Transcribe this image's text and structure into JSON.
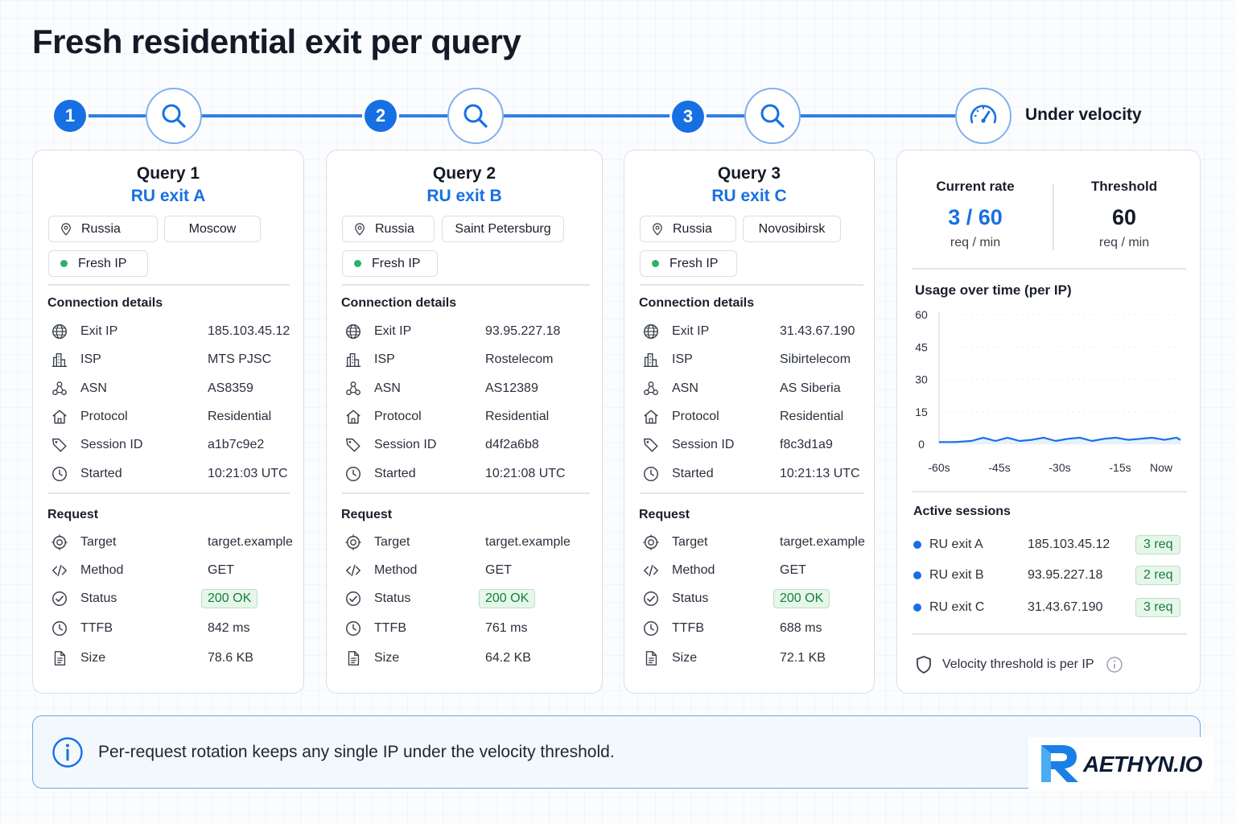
{
  "title": "Fresh residential exit per query",
  "timeline": {
    "steps": [
      "1",
      "2",
      "3"
    ],
    "end_label": "Under velocity"
  },
  "colors": {
    "accent": "#1770e3",
    "success": "#2ab36a",
    "line": "#2f7fe0"
  },
  "queries": [
    {
      "title": "Query 1",
      "exit": "RU exit A",
      "country": "Russia",
      "city": "Moscow",
      "status_chip": "Fresh IP",
      "connection_title": "Connection details",
      "connection": [
        {
          "icon": "globe-icon",
          "label": "Exit IP",
          "value": "185.103.45.12"
        },
        {
          "icon": "building-icon",
          "label": "ISP",
          "value": "MTS PJSC"
        },
        {
          "icon": "network-icon",
          "label": "ASN",
          "value": "AS8359"
        },
        {
          "icon": "home-icon",
          "label": "Protocol",
          "value": "Residential"
        },
        {
          "icon": "tag-icon",
          "label": "Session ID",
          "value": "a1b7c9e2"
        },
        {
          "icon": "clock-icon",
          "label": "Started",
          "value": "10:21:03 UTC"
        }
      ],
      "request_title": "Request",
      "request": [
        {
          "icon": "target-icon",
          "label": "Target",
          "value": "target.example"
        },
        {
          "icon": "code-icon",
          "label": "Method",
          "value": "GET"
        },
        {
          "icon": "check-circle-icon",
          "label": "Status",
          "value": "200 OK"
        },
        {
          "icon": "clock-icon",
          "label": "TTFB",
          "value": "842 ms"
        },
        {
          "icon": "file-icon",
          "label": "Size",
          "value": "78.6 KB"
        }
      ]
    },
    {
      "title": "Query 2",
      "exit": "RU exit B",
      "country": "Russia",
      "city": "Saint Petersburg",
      "status_chip": "Fresh IP",
      "connection_title": "Connection details",
      "connection": [
        {
          "icon": "globe-icon",
          "label": "Exit IP",
          "value": "93.95.227.18"
        },
        {
          "icon": "building-icon",
          "label": "ISP",
          "value": "Rostelecom"
        },
        {
          "icon": "network-icon",
          "label": "ASN",
          "value": "AS12389"
        },
        {
          "icon": "home-icon",
          "label": "Protocol",
          "value": "Residential"
        },
        {
          "icon": "tag-icon",
          "label": "Session ID",
          "value": "d4f2a6b8"
        },
        {
          "icon": "clock-icon",
          "label": "Started",
          "value": "10:21:08 UTC"
        }
      ],
      "request_title": "Request",
      "request": [
        {
          "icon": "target-icon",
          "label": "Target",
          "value": "target.example"
        },
        {
          "icon": "code-icon",
          "label": "Method",
          "value": "GET"
        },
        {
          "icon": "check-circle-icon",
          "label": "Status",
          "value": "200 OK"
        },
        {
          "icon": "clock-icon",
          "label": "TTFB",
          "value": "761 ms"
        },
        {
          "icon": "file-icon",
          "label": "Size",
          "value": "64.2 KB"
        }
      ]
    },
    {
      "title": "Query 3",
      "exit": "RU exit C",
      "country": "Russia",
      "city": "Novosibirsk",
      "status_chip": "Fresh IP",
      "connection_title": "Connection details",
      "connection": [
        {
          "icon": "globe-icon",
          "label": "Exit IP",
          "value": "31.43.67.190"
        },
        {
          "icon": "building-icon",
          "label": "ISP",
          "value": "Sibirtelecom"
        },
        {
          "icon": "network-icon",
          "label": "ASN",
          "value": "AS Siberia"
        },
        {
          "icon": "home-icon",
          "label": "Protocol",
          "value": "Residential"
        },
        {
          "icon": "tag-icon",
          "label": "Session ID",
          "value": "f8c3d1a9"
        },
        {
          "icon": "clock-icon",
          "label": "Started",
          "value": "10:21:13 UTC"
        }
      ],
      "request_title": "Request",
      "request": [
        {
          "icon": "target-icon",
          "label": "Target",
          "value": "target.example"
        },
        {
          "icon": "code-icon",
          "label": "Method",
          "value": "GET"
        },
        {
          "icon": "check-circle-icon",
          "label": "Status",
          "value": "200 OK"
        },
        {
          "icon": "clock-icon",
          "label": "TTFB",
          "value": "688 ms"
        },
        {
          "icon": "file-icon",
          "label": "Size",
          "value": "72.1 KB"
        }
      ]
    }
  ],
  "velocity": {
    "current_rate_label": "Current rate",
    "current_rate_value": "3 / 60",
    "current_rate_unit": "req / min",
    "threshold_label": "Threshold",
    "threshold_value": "60",
    "threshold_unit": "req / min",
    "usage_title": "Usage over time  (per IP)",
    "sessions_title": "Active sessions",
    "sessions": [
      {
        "name": "RU exit A",
        "ip": "185.103.45.12",
        "req": "3 req"
      },
      {
        "name": "RU exit B",
        "ip": "93.95.227.18",
        "req": "2 req"
      },
      {
        "name": "RU exit C",
        "ip": "31.43.67.190",
        "req": "3 req"
      }
    ],
    "footnote": "Velocity threshold is per IP"
  },
  "chart_data": {
    "type": "line",
    "title": "Usage over time  (per IP)",
    "xlabel": "",
    "ylabel": "",
    "x_ticks": [
      "-60s",
      "-45s",
      "-30s",
      "-15s",
      "Now"
    ],
    "y_ticks": [
      "60",
      "45",
      "30",
      "15",
      "0"
    ],
    "ylim": [
      0,
      60
    ],
    "xlim": [
      -60,
      0
    ],
    "grid": false,
    "series": [
      {
        "x": [
          -60,
          -56,
          -52,
          -49,
          -46,
          -43,
          -40,
          -37,
          -34,
          -31,
          -28,
          -25,
          -22,
          -19,
          -16,
          -13,
          -10,
          -7,
          -4,
          -1,
          0
        ],
        "values": [
          1,
          1,
          1.5,
          3,
          1.5,
          3,
          1.5,
          2,
          3,
          1.5,
          2.5,
          3,
          1.5,
          2.5,
          3,
          2,
          2.5,
          3,
          2,
          3,
          2
        ]
      }
    ]
  },
  "banner": {
    "text": "Per-request rotation keeps any single IP under the velocity threshold."
  },
  "logo": {
    "text": "AETHYN.IO"
  }
}
